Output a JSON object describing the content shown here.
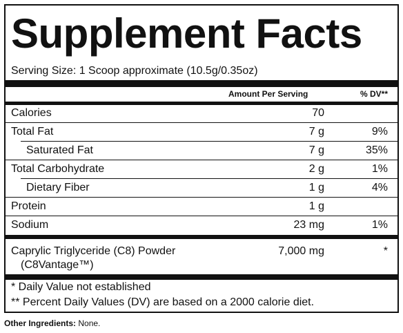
{
  "title": "Supplement Facts",
  "serving_size": "Serving Size: 1 Scoop approximate (10.5g/0.35oz)",
  "header": {
    "amount": "Amount Per Serving",
    "dv": "% DV**"
  },
  "rows": [
    {
      "name": "Calories",
      "amount": "70",
      "dv": "",
      "indent": false
    },
    {
      "name": "Total Fat",
      "amount": "7 g",
      "dv": "9%",
      "indent": false
    },
    {
      "name": "Saturated Fat",
      "amount": "7 g",
      "dv": "35%",
      "indent": true
    },
    {
      "name": "Total Carbohydrate",
      "amount": "2 g",
      "dv": "1%",
      "indent": false
    },
    {
      "name": "Dietary Fiber",
      "amount": "1 g",
      "dv": "4%",
      "indent": true
    },
    {
      "name": "Protein",
      "amount": "1 g",
      "dv": "",
      "indent": false
    },
    {
      "name": "Sodium",
      "amount": "23 mg",
      "dv": "1%",
      "indent": false
    }
  ],
  "c8": {
    "name_line1": "Caprylic Triglyceride (C8) Powder",
    "name_line2": "(C8Vantage™)",
    "amount": "7,000 mg",
    "dv": "*"
  },
  "footnotes": {
    "note1": "* Daily Value not established",
    "note2": "** Percent Daily Values (DV) are based on a 2000 calorie diet."
  },
  "other_ingredients": {
    "label": "Other Ingredients:",
    "value": "None."
  }
}
